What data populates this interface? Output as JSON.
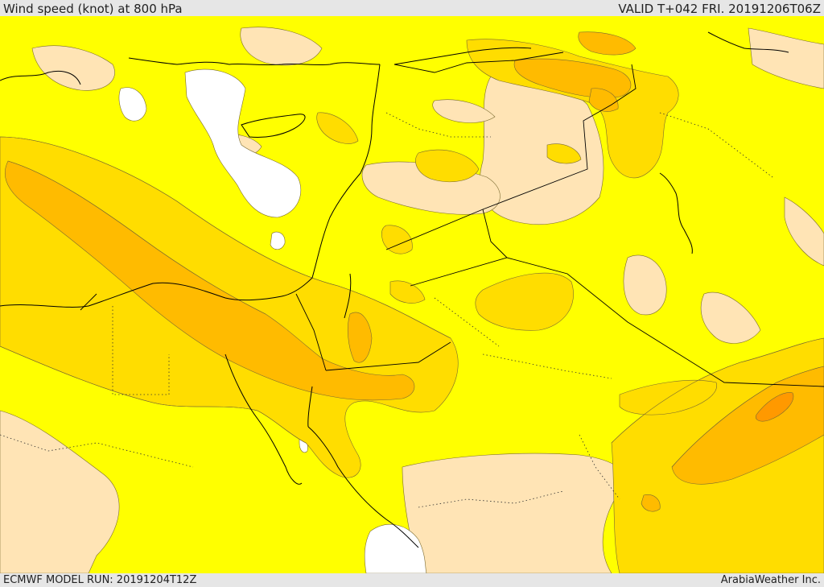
{
  "header": {
    "title": "Wind speed (knot) at 800 hPa",
    "valid": "VALID T+042 FRI. 20191206T06Z"
  },
  "footer": {
    "model_run": "ECMWF MODEL RUN: 20191204T12Z",
    "credit": "ArabiaWeather Inc."
  },
  "colors": {
    "calm": "#ffffff",
    "band_1": "#ffe4b5",
    "band_2": "#ffff00",
    "band_3": "#ffdd00",
    "band_4": "#ffbb00",
    "band_5": "#ff9900",
    "coast": "#000000",
    "border": "#000000"
  }
}
